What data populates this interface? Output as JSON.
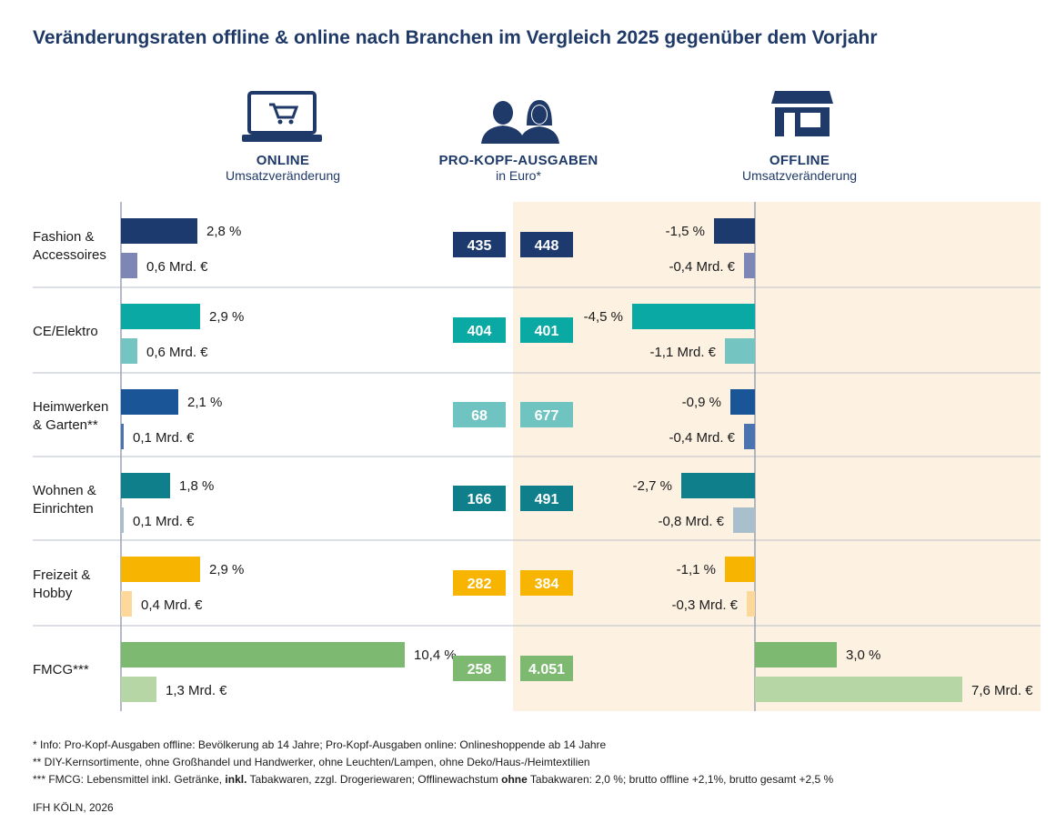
{
  "title": "Veränderungsraten offline & online nach Branchen im Vergleich 2025 gegenüber dem Vorjahr",
  "headers": {
    "online": {
      "label": "ONLINE",
      "sub": "Umsatzveränderung",
      "icon": "laptop-cart-icon"
    },
    "center": {
      "label": "PRO-KOPF-AUSGABEN",
      "sub": "in Euro*",
      "icon": "people-icon"
    },
    "offline": {
      "label": "OFFLINE",
      "sub": "Umsatzveränderung",
      "icon": "storefront-icon"
    }
  },
  "colors": {
    "background_offline": "#fdf1e1",
    "divider": "#b9c0cc"
  },
  "chart_data": {
    "type": "bar",
    "categories": [
      "Fashion & Accessoires",
      "CE/Elektro",
      "Heimwerken & Garten**",
      "Wohnen & Einrichten",
      "Freizeit & Hobby",
      "FMCG***"
    ],
    "category_lines": [
      [
        "Fashion &",
        "Accessoires"
      ],
      [
        "CE/Elektro"
      ],
      [
        "Heimwerken",
        "& Garten**"
      ],
      [
        "Wohnen &",
        "Einrichten"
      ],
      [
        "Freizeit &",
        "Hobby"
      ],
      [
        "FMCG***"
      ]
    ],
    "online_pct": [
      2.8,
      2.9,
      2.1,
      1.8,
      2.9,
      10.4
    ],
    "online_pct_labels": [
      "2,8 %",
      "2,9 %",
      "2,1 %",
      "1,8 %",
      "2,9 %",
      "10,4 %"
    ],
    "online_abs": [
      0.6,
      0.6,
      0.1,
      0.1,
      0.4,
      1.3
    ],
    "online_abs_labels": [
      "0,6 Mrd. €",
      "0,6 Mrd. €",
      "0,1 Mrd. €",
      "0,1 Mrd. €",
      "0,4 Mrd. €",
      "1,3 Mrd. €"
    ],
    "per_capita_online": [
      "435",
      "404",
      "68",
      "166",
      "282",
      "258"
    ],
    "per_capita_offline": [
      "448",
      "401",
      "677",
      "491",
      "384",
      "4.051"
    ],
    "offline_pct": [
      -1.5,
      -4.5,
      -0.9,
      -2.7,
      -1.1,
      3.0
    ],
    "offline_pct_labels": [
      "-1,5 %",
      "-4,5 %",
      "-0,9 %",
      "-2,7 %",
      "-1,1 %",
      "3,0 %"
    ],
    "offline_abs": [
      -0.4,
      -1.1,
      -0.4,
      -0.8,
      -0.3,
      7.6
    ],
    "offline_abs_labels": [
      "-0,4 Mrd. €",
      "-1,1 Mrd. €",
      "-0,4 Mrd. €",
      "-0,8 Mrd. €",
      "-0,3 Mrd. €",
      "7,6 Mrd. €"
    ],
    "colors_dark": [
      "#1c3a6e",
      "#0aa9a3",
      "#1a5598",
      "#0f7f8c",
      "#f7b400",
      "#7db971"
    ],
    "colors_light": [
      "#7d86b4",
      "#74c5c2",
      "#4b73b0",
      "#a9bfcb",
      "#fcd99a",
      "#b6d6a6"
    ],
    "colors_box": [
      "#1c3a6e",
      "#0aa9a3",
      "#6fc3c0",
      "#0f7f8c",
      "#f7b400",
      "#7db971"
    ]
  },
  "footnotes": [
    [
      "*    Info: Pro-Kopf-Ausgaben offline: Bevölkerung ab 14 Jahre; Pro-Kopf-Ausgaben online: Onlineshoppende ab 14 Jahre"
    ],
    [
      "**   DIY-Kernsortimente, ohne Großhandel und Handwerker, ohne Leuchten/Lampen, ohne Deko/Haus-/Heimtextilien"
    ],
    [
      "*** FMCG: Lebensmittel inkl. Getränke, ",
      "inkl.",
      " Tabakwaren, zzgl. Drogeriewaren; Offlinewachstum ",
      "ohne",
      " Tabakwaren: 2,0 %; brutto offline +2,1%, brutto gesamt +2,5 %"
    ]
  ],
  "credit": "IFH KÖLN, 2026"
}
